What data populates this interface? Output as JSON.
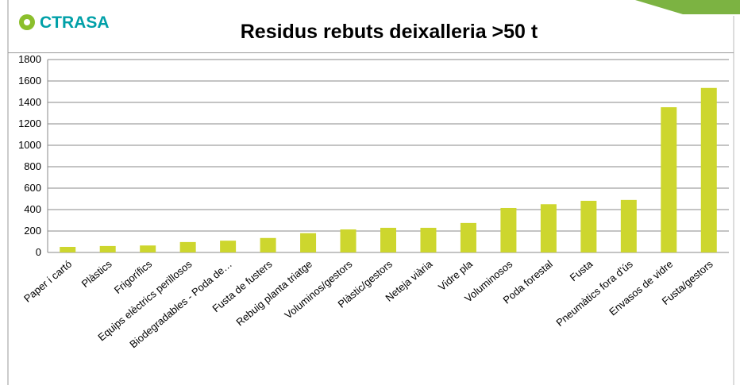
{
  "logo": "CTRASA",
  "chart_data": {
    "type": "bar",
    "title": "Residus rebuts deixalleria >50 t",
    "categories": [
      "Paper i cartó",
      "Plàstics",
      "Frigorífics",
      "Equips elèctrics perillosos",
      "Biodegradables - Poda de…",
      "Fusta de fusters",
      "Rebuig planta triatge",
      "Voluminos/gestors",
      "Plàstic/gestors",
      "Neteja viària",
      "Vidre pla",
      "Voluminosos",
      "Poda forestal",
      "Fusta",
      "Pneumàtics fora d'ús",
      "Envasos de vidre",
      "Fusta/gestors"
    ],
    "values": [
      52,
      60,
      65,
      97,
      110,
      135,
      180,
      215,
      230,
      230,
      275,
      415,
      450,
      482,
      490,
      1355,
      1535
    ],
    "color": "#cdd62e",
    "ylim": [
      0,
      1800
    ],
    "yticks": [
      0,
      200,
      400,
      600,
      800,
      1000,
      1200,
      1400,
      1600,
      1800
    ],
    "grid": true
  }
}
